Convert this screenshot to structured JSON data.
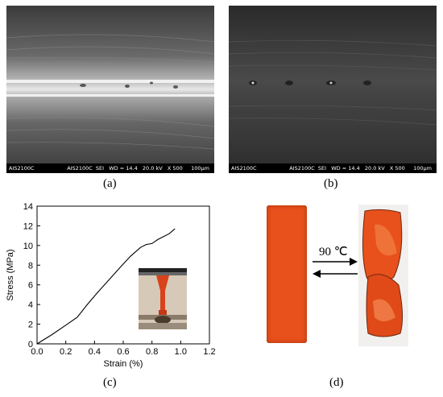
{
  "panels": {
    "a": {
      "caption": "(a)",
      "sem_left": "AIS2100C",
      "sem_right": "AIS2100C  SEI   WD = 14.4   20.0 kV   X 500     100µm"
    },
    "b": {
      "caption": "(b)",
      "sem_left": "AIS2100C",
      "sem_right": "AIS2100C  SEI   WD = 14.4   20.0 kV   X 500     100µm"
    },
    "c": {
      "caption": "(c)"
    },
    "d": {
      "caption": "(d)",
      "temperature_label": "90 ℃"
    }
  },
  "chart_data": {
    "type": "line",
    "xlabel": "Strain (%)",
    "ylabel": "Stress (MPa)",
    "xlim": [
      0.0,
      1.2
    ],
    "ylim": [
      0,
      14
    ],
    "xticks": [
      "0.0",
      "0.2",
      "0.4",
      "0.6",
      "0.8",
      "1.0",
      "1.2"
    ],
    "yticks": [
      "0",
      "2",
      "4",
      "6",
      "8",
      "10",
      "12",
      "14"
    ],
    "series": [
      {
        "x": [
          0.0,
          0.1,
          0.2,
          0.28,
          0.35,
          0.42,
          0.5,
          0.58,
          0.65,
          0.72,
          0.76,
          0.8,
          0.84,
          0.88,
          0.92,
          0.96
        ],
        "y": [
          0.0,
          0.9,
          1.9,
          2.7,
          4.0,
          5.2,
          6.5,
          7.8,
          8.9,
          9.8,
          10.1,
          10.2,
          10.6,
          10.9,
          11.2,
          11.7
        ]
      }
    ],
    "grid": false,
    "color": "#000000"
  }
}
